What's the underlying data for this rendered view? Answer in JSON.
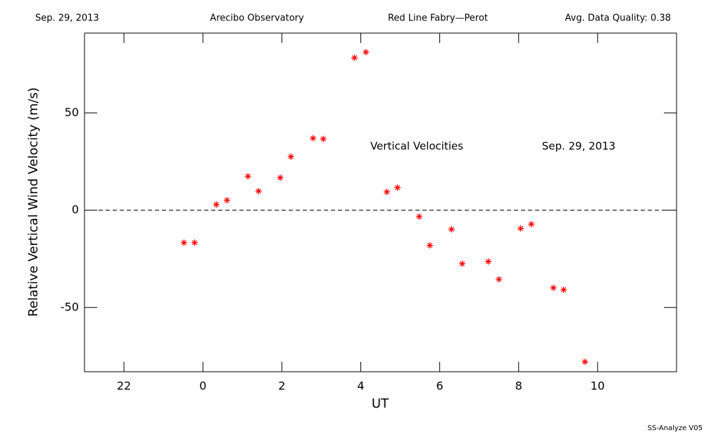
{
  "chart_data": {
    "type": "scatter",
    "header": [
      "Sep. 29, 2013",
      "Arecibo Observatory",
      "Red Line Fabry—Perot",
      "Avg. Data Quality: 0.38"
    ],
    "annotations": [
      "Vertical Velocities",
      "Sep. 29, 2013"
    ],
    "footer": "SS-Analyze V05",
    "x_label": "UT",
    "y_label": "Relative Vertical Wind Velocity (m/s)",
    "xlim": [
      -3,
      12
    ],
    "xticks": [
      {
        "value": -2,
        "label": "22"
      },
      0,
      2,
      4,
      6,
      8,
      10
    ],
    "ylim": [
      -83,
      91
    ],
    "yticks": [
      -50,
      0,
      50
    ],
    "hline": 0,
    "series": [
      {
        "name": "Vertical Velocities",
        "color": "#ff0000",
        "x": [
          -0.48,
          -0.21,
          0.34,
          0.61,
          1.14,
          1.41,
          1.96,
          2.23,
          2.79,
          3.05,
          3.84,
          4.13,
          4.66,
          4.93,
          5.48,
          5.75,
          6.3,
          6.57,
          7.23,
          7.5,
          8.05,
          8.32,
          8.88,
          9.14,
          9.68
        ],
        "values": [
          -16.7,
          -16.7,
          2.9,
          5.1,
          17.4,
          9.8,
          16.7,
          27.5,
          37.0,
          36.6,
          78.3,
          81.2,
          9.4,
          11.6,
          -3.3,
          -18.1,
          -9.8,
          -27.5,
          -26.4,
          -35.5,
          -9.4,
          -7.2,
          -39.9,
          -40.9,
          -77.9
        ]
      }
    ]
  }
}
